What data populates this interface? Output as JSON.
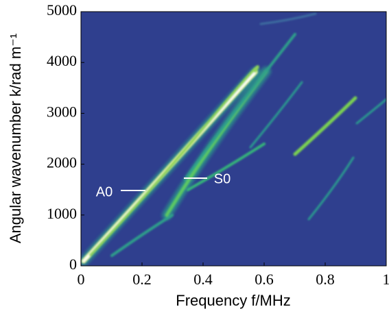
{
  "chart_data": {
    "type": "heatmap",
    "x_label": "Frequency f/MHz",
    "y_label": "Angular wavenumber k/rad m⁻¹",
    "xlim": [
      0,
      1
    ],
    "xticks": [
      0,
      0.2,
      0.4,
      0.6,
      0.8,
      1
    ],
    "ylim": [
      0,
      5000
    ],
    "yticks": [
      0,
      1000,
      2000,
      3000,
      4000,
      5000
    ],
    "background_color": "#2f3f8e",
    "annotations": [
      {
        "text": "A0"
      },
      {
        "text": "S0"
      }
    ]
  }
}
